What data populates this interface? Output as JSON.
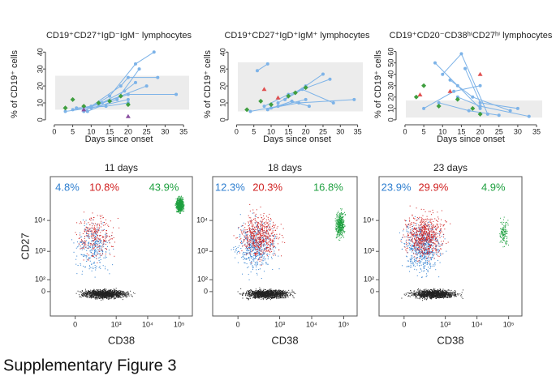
{
  "chart_data": [
    {
      "type": "line",
      "title": "CD19⁺CD27⁺IgD⁻IgM⁻ lymphocytes",
      "ylabel": "% of CD19⁺ cells",
      "xlabel": "Days since onset",
      "xlim": [
        -1.5,
        36.5
      ],
      "xticks": [
        0,
        5,
        10,
        15,
        20,
        25,
        30,
        35
      ],
      "ylim": [
        -1,
        43
      ],
      "yticks": [
        0,
        10,
        20,
        30,
        40
      ],
      "band": [
        6,
        26
      ],
      "series": [
        {
          "color": "#7db3e8",
          "x": [
            3,
            10,
            20
          ],
          "values": [
            5,
            7,
            12
          ]
        },
        {
          "color": "#7db3e8",
          "x": [
            5,
            12,
            25
          ],
          "values": [
            6,
            9,
            20
          ]
        },
        {
          "color": "#7db3e8",
          "x": [
            8,
            15,
            22,
            27
          ],
          "values": [
            5,
            14,
            33,
            40
          ]
        },
        {
          "color": "#7db3e8",
          "x": [
            10,
            18,
            20,
            28
          ],
          "values": [
            8,
            20,
            25,
            25
          ]
        },
        {
          "color": "#7db3e8",
          "x": [
            13,
            20,
            33
          ],
          "values": [
            10,
            15,
            15
          ]
        },
        {
          "color": "#7db3e8",
          "x": [
            6,
            14,
            20
          ],
          "values": [
            7,
            8,
            10
          ]
        },
        {
          "color": "#7db3e8",
          "x": [
            9,
            17,
            23
          ],
          "values": [
            5,
            12,
            30
          ]
        },
        {
          "color": "#7db3e8",
          "x": [
            12,
            19,
            22
          ],
          "values": [
            9,
            17,
            22
          ]
        },
        {
          "color": "#3f9e3f",
          "marker": "diamond",
          "x": [
            3,
            5,
            8,
            12,
            15,
            18,
            20
          ],
          "values": [
            7,
            12,
            8,
            10,
            11,
            14,
            9
          ]
        },
        {
          "color": "#8a4fa0",
          "marker": "triangle",
          "x": [
            8,
            20
          ],
          "values": [
            6,
            2
          ]
        }
      ]
    },
    {
      "type": "line",
      "title": "CD19⁺CD27⁺IgD⁺IgM⁺ lymphocytes",
      "ylabel": "% of CD19⁺ cells",
      "xlabel": "Days since onset",
      "xlim": [
        -1.5,
        36.5
      ],
      "xticks": [
        0,
        5,
        10,
        15,
        20,
        25,
        30,
        35
      ],
      "ylim": [
        -1,
        43
      ],
      "yticks": [
        0,
        10,
        20,
        30,
        40
      ],
      "band": [
        5,
        34
      ],
      "series": [
        {
          "color": "#7db3e8",
          "x": [
            6,
            9
          ],
          "values": [
            29,
            33
          ]
        },
        {
          "color": "#7db3e8",
          "x": [
            4,
            12,
            20
          ],
          "values": [
            5,
            8,
            12
          ]
        },
        {
          "color": "#7db3e8",
          "x": [
            8,
            15,
            27
          ],
          "values": [
            8,
            15,
            24
          ]
        },
        {
          "color": "#7db3e8",
          "x": [
            10,
            18,
            34
          ],
          "values": [
            7,
            10,
            12
          ]
        },
        {
          "color": "#7db3e8",
          "x": [
            12,
            20,
            25
          ],
          "values": [
            10,
            20,
            27
          ]
        },
        {
          "color": "#7db3e8",
          "x": [
            14,
            19,
            28
          ],
          "values": [
            12,
            18,
            10
          ]
        },
        {
          "color": "#7db3e8",
          "x": [
            9,
            16,
            21
          ],
          "values": [
            6,
            11,
            8
          ]
        },
        {
          "color": "#3f9e3f",
          "marker": "diamond",
          "x": [
            3,
            7,
            10,
            15,
            17,
            20
          ],
          "values": [
            6,
            11,
            9,
            14,
            16,
            19
          ]
        },
        {
          "color": "#e05050",
          "marker": "triangle",
          "x": [
            8,
            12
          ],
          "values": [
            18,
            13
          ]
        }
      ]
    },
    {
      "type": "line",
      "title": "CD19⁺CD20⁻CD38ʰⁱCD27ʰⁱ lymphocytes",
      "ylabel": "% of CD19⁺ cells",
      "xlabel": "Days since onset",
      "xlim": [
        -1.5,
        36.5
      ],
      "xticks": [
        0,
        5,
        10,
        15,
        20,
        25,
        30,
        35
      ],
      "ylim": [
        -1.5,
        64
      ],
      "yticks": [
        0,
        10,
        20,
        30,
        40,
        50,
        60
      ],
      "band": [
        2,
        17
      ],
      "series": [
        {
          "color": "#7db3e8",
          "x": [
            8,
            14,
            20
          ],
          "values": [
            50,
            30,
            10
          ]
        },
        {
          "color": "#7db3e8",
          "x": [
            10,
            15,
            22
          ],
          "values": [
            40,
            58,
            5
          ]
        },
        {
          "color": "#7db3e8",
          "x": [
            12,
            18,
            28
          ],
          "values": [
            35,
            20,
            8
          ]
        },
        {
          "color": "#7db3e8",
          "x": [
            5,
            13,
            20
          ],
          "values": [
            10,
            25,
            30
          ]
        },
        {
          "color": "#7db3e8",
          "x": [
            14,
            20,
            33
          ],
          "values": [
            20,
            12,
            3
          ]
        },
        {
          "color": "#7db3e8",
          "x": [
            9,
            17,
            25
          ],
          "values": [
            15,
            8,
            4
          ]
        },
        {
          "color": "#7db3e8",
          "x": [
            16,
            20,
            30
          ],
          "values": [
            45,
            15,
            10
          ]
        },
        {
          "color": "#3f9e3f",
          "marker": "diamond",
          "x": [
            3,
            5,
            9,
            14,
            18,
            20
          ],
          "values": [
            20,
            30,
            12,
            18,
            10,
            5
          ]
        },
        {
          "color": "#e05050",
          "marker": "triangle",
          "x": [
            20,
            12,
            4
          ],
          "values": [
            40,
            25,
            22
          ]
        }
      ]
    },
    {
      "type": "flow",
      "title": "11 days",
      "xlabel": "CD38",
      "ylabel": "CD27",
      "values": [
        4.8,
        10.8,
        43.9
      ],
      "value_labels": [
        "4.8%",
        "10.8%",
        "43.9%"
      ],
      "colors": [
        "#2f7fd0",
        "#d02020",
        "#1fa040"
      ],
      "xlim": [
        -300,
        262144
      ],
      "xticks": [
        {
          "value": 0,
          "label": "0"
        },
        {
          "value": 1000,
          "label": "10³"
        },
        {
          "value": 10000,
          "label": "10⁴"
        },
        {
          "value": 100000,
          "label": "10⁵"
        }
      ],
      "ylim": [
        -300,
        262144
      ],
      "yticks": [
        {
          "value": 0,
          "label": "0"
        },
        {
          "value": 100,
          "label": "10²"
        },
        {
          "value": 1000,
          "label": "10³"
        },
        {
          "value": 10000,
          "label": "10⁴"
        }
      ]
    },
    {
      "type": "flow",
      "title": "18 days",
      "xlabel": "CD38",
      "values": [
        12.3,
        20.3,
        16.8
      ],
      "value_labels": [
        "12.3%",
        "20.3%",
        "16.8%"
      ],
      "colors": [
        "#2f7fd0",
        "#d02020",
        "#1fa040"
      ],
      "xlim": [
        -300,
        262144
      ],
      "xticks": [
        {
          "value": 0,
          "label": "0"
        },
        {
          "value": 1000,
          "label": "10³"
        },
        {
          "value": 10000,
          "label": "10⁴"
        },
        {
          "value": 100000,
          "label": "10⁵"
        }
      ],
      "ylim": [
        -300,
        262144
      ],
      "yticks": [
        {
          "value": 0,
          "label": "0"
        },
        {
          "value": 100,
          "label": "10²"
        },
        {
          "value": 1000,
          "label": "10³"
        },
        {
          "value": 10000,
          "label": "10⁴"
        }
      ]
    },
    {
      "type": "flow",
      "title": "23 days",
      "xlabel": "CD38",
      "values": [
        23.9,
        29.9,
        4.9
      ],
      "value_labels": [
        "23.9%",
        "29.9%",
        "4.9%"
      ],
      "colors": [
        "#2f7fd0",
        "#d02020",
        "#1fa040"
      ],
      "xlim": [
        -300,
        262144
      ],
      "xticks": [
        {
          "value": 0,
          "label": "0"
        },
        {
          "value": 1000,
          "label": "10³"
        },
        {
          "value": 10000,
          "label": "10⁴"
        },
        {
          "value": 100000,
          "label": "10⁵"
        }
      ],
      "ylim": [
        -300,
        262144
      ],
      "yticks": [
        {
          "value": 0,
          "label": "0"
        },
        {
          "value": 100,
          "label": "10²"
        },
        {
          "value": 1000,
          "label": "10³"
        },
        {
          "value": 10000,
          "label": "10⁴"
        }
      ]
    }
  ],
  "caption": "Supplementary Figure 3"
}
